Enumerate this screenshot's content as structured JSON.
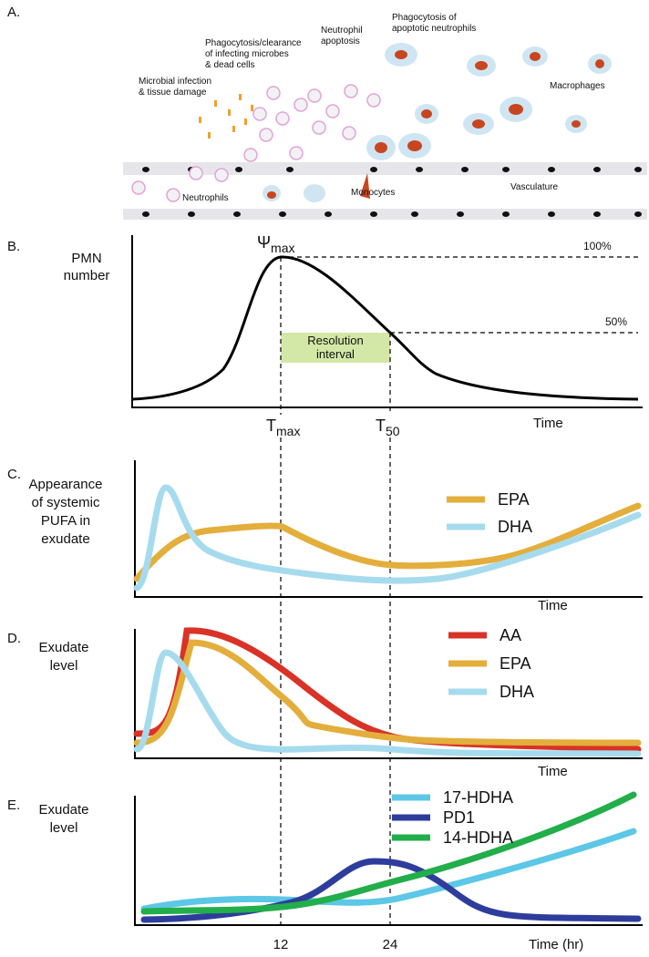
{
  "panel_a": {
    "label": "A.",
    "annotations": [
      {
        "lines": [
          "Microbial infection",
          "& tissue damage"
        ]
      },
      {
        "lines": [
          "Phagocytosis/clearance",
          "of infecting microbes",
          "& dead cells"
        ]
      },
      {
        "lines": [
          "Neutrophil",
          "apoptosis"
        ]
      },
      {
        "lines": [
          "Phagocytosis of",
          "apoptotic neutrophils"
        ]
      },
      {
        "lines": [
          "Macrophages"
        ]
      },
      {
        "lines": [
          "Neutrophils"
        ]
      },
      {
        "lines": [
          "Monocytes"
        ]
      },
      {
        "lines": [
          "Vasculature"
        ]
      }
    ]
  },
  "panel_b": {
    "label": "B.",
    "y_label": [
      "PMN",
      "number"
    ],
    "peak": {
      "symbol": "Ψ",
      "subscript": "max"
    },
    "level_100": "100%",
    "level_50": "50%",
    "interval": [
      "Resolution",
      "interval"
    ],
    "t_max": {
      "symbol": "T",
      "subscript": "max"
    },
    "t_50": {
      "symbol": "T",
      "subscript": "50"
    },
    "x_label": "Time"
  },
  "panel_c": {
    "label": "C.",
    "y_label": [
      "Appearance",
      "of systemic",
      "PUFA in",
      "exudate"
    ],
    "legend": [
      {
        "name": "EPA",
        "color": "#e3ae3c"
      },
      {
        "name": "DHA",
        "color": "#a6dbee"
      }
    ],
    "x_label": "Time"
  },
  "panel_d": {
    "label": "D.",
    "y_label": [
      "Exudate",
      "level"
    ],
    "legend": [
      {
        "name": "AA",
        "color": "#d93226"
      },
      {
        "name": "EPA",
        "color": "#e3ae3c"
      },
      {
        "name": "DHA",
        "color": "#a6dbee"
      }
    ],
    "x_label": "Time"
  },
  "panel_e": {
    "label": "E.",
    "y_label": [
      "Exudate",
      "level"
    ],
    "legend": [
      {
        "name": "17-HDHA",
        "color": "#5cc7e6"
      },
      {
        "name": "PD1",
        "color": "#2e3d9c"
      },
      {
        "name": "14-HDHA",
        "color": "#22ae4a"
      }
    ],
    "xticks": [
      12,
      24
    ],
    "x_label": "Time  (hr)"
  }
}
